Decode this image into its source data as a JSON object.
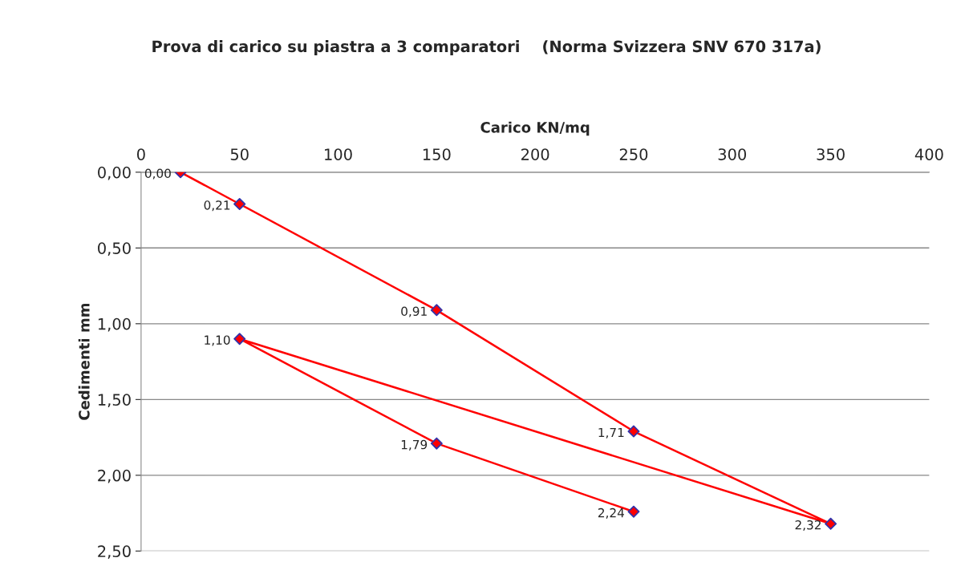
{
  "chart_data": {
    "type": "line",
    "title": "Prova di carico su piastra a 3 comparatori    (Norma Svizzera SNV 670 317a)",
    "xlabel": "Carico KN/mq",
    "ylabel": "Cedimenti mm",
    "x": [
      20,
      50,
      150,
      250,
      350,
      50,
      150,
      250
    ],
    "series": [
      {
        "color": "#ff0000",
        "values": [
          0.0,
          0.21,
          0.91,
          1.71,
          2.32,
          1.1,
          1.79,
          2.24
        ],
        "value_labels": [
          "0,00",
          "0,21",
          "0,91",
          "1,71",
          "2,32",
          "1,10",
          "1,79",
          "2,24"
        ]
      }
    ],
    "xlim": [
      0,
      400
    ],
    "xticks": [
      0,
      50,
      100,
      150,
      200,
      250,
      300,
      350,
      400
    ],
    "ylim": [
      2.5,
      0
    ],
    "yticks": [
      {
        "value": 0,
        "label": "0,00"
      },
      {
        "value": 0.5,
        "label": "0,50"
      },
      {
        "value": 1.0,
        "label": "1,00"
      },
      {
        "value": 1.5,
        "label": "1,50"
      },
      {
        "value": 2.0,
        "label": "2,00"
      },
      {
        "value": 2.5,
        "label": "2,50"
      }
    ],
    "grid": "y",
    "marker": "diamond",
    "line_style": "solid",
    "legend": false
  }
}
